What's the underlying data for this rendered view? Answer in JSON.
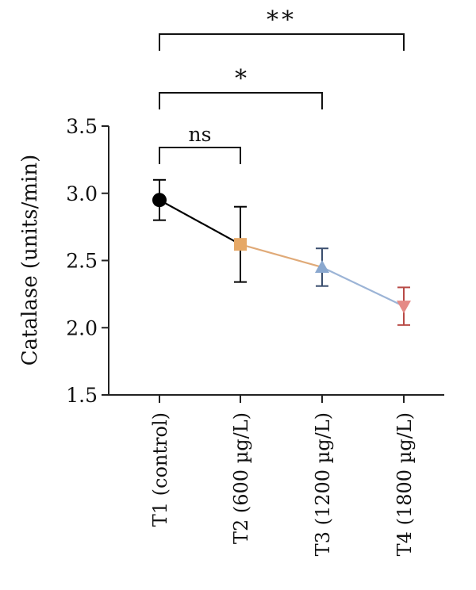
{
  "chart_data": {
    "type": "line",
    "title": "",
    "xlabel": "",
    "ylabel": "Catalase (units/min)",
    "ylim": [
      1.5,
      3.5
    ],
    "yticks": [
      "1.5",
      "2.0",
      "2.5",
      "3.0",
      "3.5"
    ],
    "categories": [
      "T1 (control)",
      "T2 (600 µg/L)",
      "T3 (1200 µg/L)",
      "T4 (1800 µg/L)"
    ],
    "values": [
      2.95,
      2.62,
      2.45,
      2.16
    ],
    "errors": [
      0.15,
      0.28,
      0.14,
      0.14
    ],
    "markers": [
      "circle",
      "square",
      "triangle-up",
      "triangle-down"
    ],
    "marker_colors": [
      "#000000",
      "#e6a866",
      "#8aa8cf",
      "#e58a86"
    ],
    "errorbar_colors": [
      "#000000",
      "#000000",
      "#3a4e6e",
      "#b84a46"
    ],
    "segment_colors": [
      "#000000",
      "#e0aa78",
      "#9cb4d6"
    ],
    "grid": false,
    "legend": "none",
    "significance": [
      {
        "from": 0,
        "to": 1,
        "label": "ns"
      },
      {
        "from": 0,
        "to": 2,
        "label": "*"
      },
      {
        "from": 0,
        "to": 3,
        "label": "**"
      }
    ]
  }
}
